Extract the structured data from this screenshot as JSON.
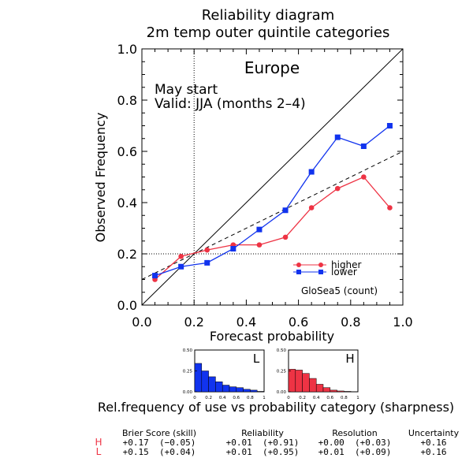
{
  "chart_data": [
    {
      "type": "line",
      "title": "Reliability diagram",
      "subtitle": "2m temp outer quintile categories",
      "region": "Europe",
      "annotations": [
        "May start",
        "Valid: JJA (months 2–4)"
      ],
      "model_label": "GloSea5 (count)",
      "xlabel": "Forecast probability",
      "ylabel": "Observed Frequency",
      "xlim": [
        0,
        1.0
      ],
      "ylim": [
        0,
        1.0
      ],
      "x_ticks": [
        "0.0",
        "0.2",
        "0.4",
        "0.6",
        "0.8",
        "1.0"
      ],
      "y_ticks": [
        "0.0",
        "0.2",
        "0.4",
        "0.6",
        "0.8",
        "1.0"
      ],
      "climatology": 0.2,
      "no_skill_line": true,
      "perfect_reliability_line": true,
      "legend_position": "bottom-right",
      "x": [
        0.05,
        0.15,
        0.25,
        0.35,
        0.45,
        0.55,
        0.65,
        0.75,
        0.85,
        0.95
      ],
      "series": [
        {
          "name": "higher",
          "color": "#ee3344",
          "marker": "circle",
          "values": [
            0.1,
            0.19,
            0.215,
            0.235,
            0.235,
            0.265,
            0.38,
            0.455,
            0.5,
            0.38
          ]
        },
        {
          "name": "lower",
          "color": "#1133ee",
          "marker": "square",
          "values": [
            0.115,
            0.15,
            0.165,
            0.22,
            0.295,
            0.37,
            0.52,
            0.655,
            0.62,
            0.7
          ]
        }
      ]
    },
    {
      "type": "bar",
      "label": "L",
      "color": "#1133ee",
      "y_ticks": [
        "0.50",
        "0.25",
        "0.00"
      ],
      "x_ticks": [
        "0",
        "0.2",
        "0.4",
        "0.6",
        "0.8",
        "1"
      ],
      "ylim": [
        0,
        0.5
      ],
      "values": [
        0.34,
        0.25,
        0.18,
        0.12,
        0.08,
        0.06,
        0.05,
        0.03,
        0.02,
        0.005
      ]
    },
    {
      "type": "bar",
      "label": "H",
      "color": "#ee3344",
      "y_ticks": [
        "0.50",
        "0.25",
        "0.00"
      ],
      "x_ticks": [
        "0",
        "0.2",
        "0.4",
        "0.6",
        "0.8",
        "1"
      ],
      "ylim": [
        0,
        0.5
      ],
      "values": [
        0.27,
        0.26,
        0.22,
        0.16,
        0.09,
        0.05,
        0.02,
        0.01,
        0.005,
        0.0
      ]
    }
  ],
  "sharpness_caption": "Rel.frequency of use vs probability category (sharpness)",
  "scores": {
    "headers": [
      "Brier Score (skill)",
      "Reliability",
      "Resolution",
      "Uncertainty"
    ],
    "rows": [
      {
        "label": "H",
        "color": "#ee3344",
        "cells": [
          "+0.17  (−0.05)",
          "+0.01  (+0.91)",
          "+0.00  (+0.03)",
          "+0.16"
        ]
      },
      {
        "label": "L",
        "color": "#ee3344",
        "cells": [
          "+0.15  (+0.04)",
          "+0.01  (+0.95)",
          "+0.01  (+0.09)",
          "+0.16"
        ]
      }
    ]
  }
}
